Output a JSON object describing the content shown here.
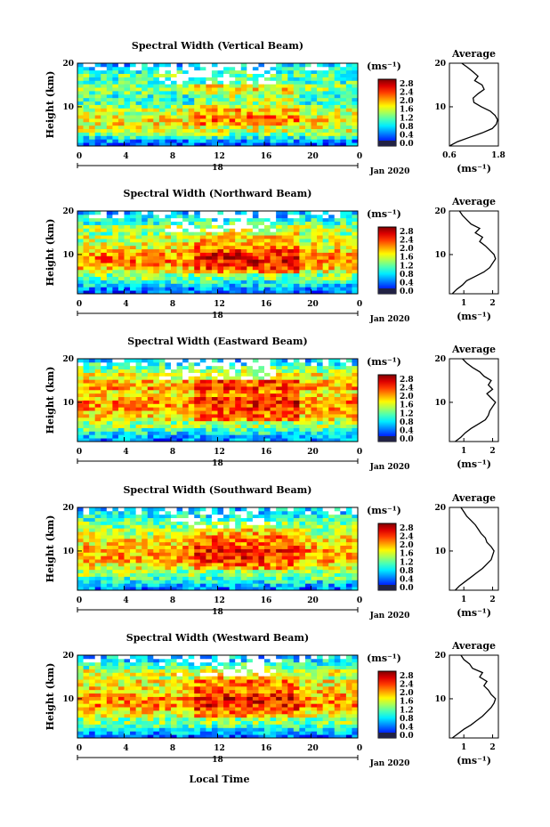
{
  "figure": {
    "date_label": "Jan 2020",
    "xlabel": "Local Time",
    "day_label": "18",
    "colorbar_unit": "(ms⁻¹)",
    "colorbar_ticks": [
      "0.0",
      "0.4",
      "0.8",
      "1.2",
      "1.6",
      "2.0",
      "2.4",
      "2.8"
    ],
    "avg_title": "Average",
    "avg_unit": "(ms⁻¹)",
    "ylabel": "Height (km)",
    "colors": {
      "low": "#2a2f8c",
      "mid": "#3ec3e8",
      "high": "#f7e93a",
      "max": "#d7191c"
    }
  },
  "chart_data": [
    {
      "type": "heatmap",
      "title": "Spectral Width (Vertical Beam)",
      "xlabel": "Local Time",
      "ylabel": "Height (km)",
      "x_ticks": [
        "0",
        "4",
        "8",
        "12",
        "16",
        "20",
        "0"
      ],
      "xlim": [
        0,
        24
      ],
      "y_ticks": [
        "10",
        "20"
      ],
      "ylim": [
        1,
        20
      ],
      "colorbar": {
        "label": "(ms⁻¹)",
        "range": [
          0.0,
          2.8
        ]
      },
      "profile": {
        "type": "line",
        "title": "Average",
        "xlabel": "(ms⁻¹)",
        "x_ticks": [
          "0.6",
          "1.8"
        ],
        "xlim": [
          0.6,
          1.8
        ],
        "height": [
          1,
          2,
          3,
          4,
          5,
          6,
          7,
          8,
          9,
          10,
          11,
          12,
          13,
          14,
          15,
          16,
          17,
          18,
          19,
          20
        ],
        "width": [
          0.6,
          0.8,
          1.1,
          1.4,
          1.65,
          1.75,
          1.78,
          1.72,
          1.6,
          1.38,
          1.2,
          1.18,
          1.3,
          1.45,
          1.4,
          1.22,
          1.3,
          1.18,
          1.05,
          0.9
        ]
      }
    },
    {
      "type": "heatmap",
      "title": "Spectral Width (Northward Beam)",
      "xlabel": "Local Time",
      "ylabel": "Height (km)",
      "x_ticks": [
        "0",
        "4",
        "8",
        "12",
        "16",
        "20",
        "0"
      ],
      "xlim": [
        0,
        24
      ],
      "y_ticks": [
        "10",
        "20"
      ],
      "ylim": [
        1,
        20
      ],
      "colorbar": {
        "label": "(ms⁻¹)",
        "range": [
          0.0,
          2.8
        ]
      },
      "profile": {
        "type": "line",
        "title": "Average",
        "xlabel": "(ms⁻¹)",
        "x_ticks": [
          "1",
          "2"
        ],
        "xlim": [
          0.5,
          2.2
        ],
        "height": [
          1,
          2,
          3,
          4,
          5,
          6,
          7,
          8,
          9,
          10,
          11,
          12,
          13,
          14,
          15,
          16,
          17,
          18,
          19,
          20
        ],
        "width": [
          0.6,
          0.75,
          0.95,
          1.1,
          1.4,
          1.7,
          1.9,
          2.0,
          2.1,
          2.05,
          1.9,
          1.75,
          1.55,
          1.65,
          1.4,
          1.55,
          1.25,
          1.1,
          0.95,
          0.85
        ]
      }
    },
    {
      "type": "heatmap",
      "title": "Spectral Width (Eastward Beam)",
      "xlabel": "Local Time",
      "ylabel": "Height (km)",
      "x_ticks": [
        "0",
        "4",
        "8",
        "12",
        "16",
        "20",
        "0"
      ],
      "xlim": [
        0,
        24
      ],
      "y_ticks": [
        "10",
        "20"
      ],
      "ylim": [
        1,
        20
      ],
      "colorbar": {
        "label": "(ms⁻¹)",
        "range": [
          0.0,
          2.8
        ]
      },
      "profile": {
        "type": "line",
        "title": "Average",
        "xlabel": "(ms⁻¹)",
        "x_ticks": [
          "1",
          "2"
        ],
        "xlim": [
          0.5,
          2.2
        ],
        "height": [
          1,
          2,
          3,
          4,
          5,
          6,
          7,
          8,
          9,
          10,
          11,
          12,
          13,
          14,
          15,
          16,
          17,
          18,
          19,
          20
        ],
        "width": [
          0.7,
          0.9,
          1.05,
          1.25,
          1.5,
          1.75,
          1.85,
          1.9,
          2.0,
          2.1,
          1.95,
          1.8,
          2.0,
          1.85,
          1.95,
          1.7,
          1.55,
          1.3,
          1.1,
          0.95
        ]
      }
    },
    {
      "type": "heatmap",
      "title": "Spectral Width (Southward Beam)",
      "xlabel": "Local Time",
      "ylabel": "Height (km)",
      "x_ticks": [
        "0",
        "4",
        "8",
        "12",
        "16",
        "20",
        "0"
      ],
      "xlim": [
        0,
        24
      ],
      "y_ticks": [
        "10",
        "20"
      ],
      "ylim": [
        1,
        20
      ],
      "colorbar": {
        "label": "(ms⁻¹)",
        "range": [
          0.0,
          2.8
        ]
      },
      "profile": {
        "type": "line",
        "title": "Average",
        "xlabel": "(ms⁻¹)",
        "x_ticks": [
          "1",
          "2"
        ],
        "xlim": [
          0.5,
          2.2
        ],
        "height": [
          1,
          2,
          3,
          4,
          5,
          6,
          7,
          8,
          9,
          10,
          11,
          12,
          13,
          14,
          15,
          16,
          17,
          18,
          19,
          20
        ],
        "width": [
          0.7,
          0.85,
          1.05,
          1.25,
          1.45,
          1.65,
          1.8,
          1.95,
          2.0,
          2.05,
          1.95,
          1.8,
          1.75,
          1.6,
          1.5,
          1.4,
          1.25,
          1.1,
          1.0,
          0.9
        ]
      }
    },
    {
      "type": "heatmap",
      "title": "Spectral Width (Westward Beam)",
      "xlabel": "Local Time",
      "ylabel": "Height (km)",
      "x_ticks": [
        "0",
        "4",
        "8",
        "12",
        "16",
        "20",
        "0"
      ],
      "xlim": [
        0,
        24
      ],
      "y_ticks": [
        "10",
        "20"
      ],
      "ylim": [
        1,
        20
      ],
      "colorbar": {
        "label": "(ms⁻¹)",
        "range": [
          0.0,
          2.8
        ]
      },
      "profile": {
        "type": "line",
        "title": "Average",
        "xlabel": "(ms⁻¹)",
        "x_ticks": [
          "1",
          "2"
        ],
        "xlim": [
          0.5,
          2.2
        ],
        "height": [
          1,
          2,
          3,
          4,
          5,
          6,
          7,
          8,
          9,
          10,
          11,
          12,
          13,
          14,
          15,
          16,
          17,
          18,
          19,
          20
        ],
        "width": [
          0.6,
          0.8,
          1.0,
          1.25,
          1.45,
          1.65,
          1.8,
          1.95,
          2.05,
          2.1,
          1.95,
          1.85,
          1.7,
          1.8,
          1.55,
          1.65,
          1.3,
          1.2,
          1.0,
          0.9
        ]
      }
    }
  ]
}
